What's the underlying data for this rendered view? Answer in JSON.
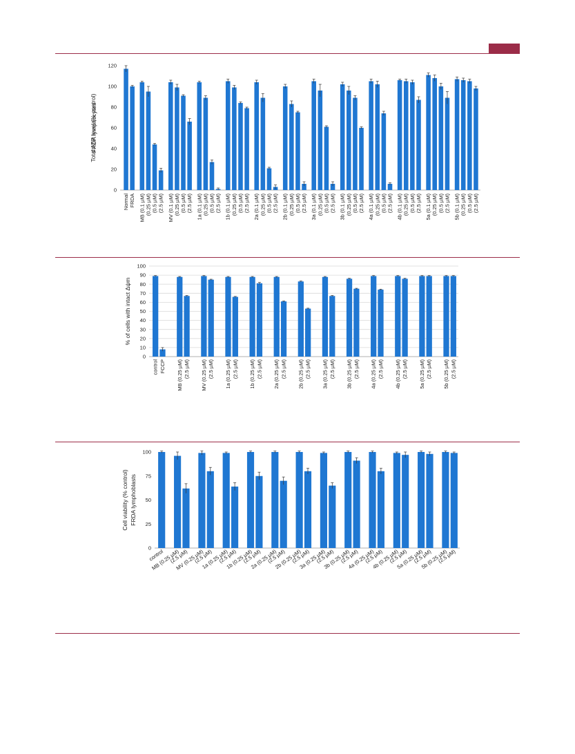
{
  "colors": {
    "accent": "#9b2c48",
    "bar": "#1f77d2",
    "axis": "#999999",
    "text": "#222222"
  },
  "chart_data": [
    {
      "type": "bar",
      "ylabel": "Total ATP level (% control)\nFRDA lymphocytes",
      "ylim": [
        0,
        120
      ],
      "yticks": [
        0,
        20,
        40,
        60,
        80,
        100,
        120
      ],
      "grid": false,
      "groups": [
        {
          "labels": [
            "Normal",
            "FRDA"
          ],
          "values": [
            117,
            100
          ],
          "errors": [
            3,
            1
          ]
        },
        {
          "labels": [
            "MB (0.1 µM)",
            "(0.25 µM)",
            "(0.5 µM)",
            "(2.5 µM)"
          ],
          "values": [
            104,
            95,
            44,
            19
          ],
          "errors": [
            1,
            5,
            1,
            2
          ]
        },
        {
          "labels": [
            "MV (0.1 µM)",
            "(0.25 µM)",
            "(0.5 µM)",
            "(2.5 µM)"
          ],
          "values": [
            104,
            99,
            91,
            66
          ],
          "errors": [
            2,
            3,
            1,
            3
          ]
        },
        {
          "labels": [
            "1a (0.1 µM)",
            "(0.25 µM)",
            "(0.5 µM)",
            "(2.5 µM)"
          ],
          "values": [
            104,
            89,
            27,
            1
          ],
          "errors": [
            1,
            2,
            2,
            1
          ]
        },
        {
          "labels": [
            "1b (0.1 µM)",
            "(0.25 µM)",
            "(0.5 µM)",
            "(2.5 µM)"
          ],
          "values": [
            105,
            99,
            84,
            79
          ],
          "errors": [
            2,
            2,
            1,
            1
          ]
        },
        {
          "labels": [
            "2a (0.1 µM)",
            "(0.25 µM)",
            "(0.5 µM)",
            "(2.5 µM)"
          ],
          "values": [
            104,
            89,
            21,
            3
          ],
          "errors": [
            2,
            4,
            1,
            2
          ]
        },
        {
          "labels": [
            "2b (0.1 µM)",
            "(0.25 µM)",
            "(0.5 µM)",
            "(2.5 µM)"
          ],
          "values": [
            100,
            83,
            75,
            6
          ],
          "errors": [
            2,
            3,
            1,
            2
          ]
        },
        {
          "labels": [
            "3a (0.1 µM)",
            "(0.25 µM)",
            "(0.5 µM)",
            "(2.5 µM)"
          ],
          "values": [
            105,
            96,
            61,
            6
          ],
          "errors": [
            2,
            6,
            1,
            2
          ]
        },
        {
          "labels": [
            "3b (0.1 µM)",
            "(0.25 µM)",
            "(0.5 µM)",
            "(2.5 µM)"
          ],
          "values": [
            102,
            96,
            89,
            60
          ],
          "errors": [
            2,
            4,
            2,
            1
          ]
        },
        {
          "labels": [
            "4a (0.1 µM)",
            "(0.25 µM)",
            "(0.5 µM)",
            "(2.5 µM)"
          ],
          "values": [
            105,
            102,
            74,
            6
          ],
          "errors": [
            2,
            3,
            2,
            1
          ]
        },
        {
          "labels": [
            "4b (0.1 µM)",
            "(0.25 µM)",
            "(0.5 µM)",
            "(2.5 µM)"
          ],
          "values": [
            106,
            105,
            104,
            87
          ],
          "errors": [
            1,
            2,
            2,
            3
          ]
        },
        {
          "labels": [
            "5a (0.1 µM)",
            "(0.25 µM)",
            "(0.5 µM)",
            "(2.5 µM)"
          ],
          "values": [
            111,
            108,
            100,
            89
          ],
          "errors": [
            2,
            3,
            3,
            6
          ]
        },
        {
          "labels": [
            "5b (0.1 µM)",
            "(0.25 µM)",
            "(0.5 µM)",
            "(2.5 µM)"
          ],
          "values": [
            107,
            106,
            105,
            98
          ],
          "errors": [
            2,
            2,
            2,
            2
          ]
        }
      ]
    },
    {
      "type": "bar",
      "ylabel": "% of cells with intact Δψm",
      "ylim": [
        0,
        100
      ],
      "yticks": [
        0,
        10,
        20,
        30,
        40,
        50,
        60,
        70,
        80,
        90,
        100
      ],
      "grid": true,
      "groups": [
        {
          "labels": [
            "control",
            "FCCP"
          ],
          "values": [
            89,
            8
          ],
          "errors": [
            0.5,
            2
          ]
        },
        {
          "labels": [
            "MB (0.25 µM)",
            "(2.5 µM)"
          ],
          "values": [
            88,
            67
          ],
          "errors": [
            0.5,
            0.5
          ]
        },
        {
          "labels": [
            "MV (0.25 µM)",
            "(2.5 µM)"
          ],
          "values": [
            89,
            85
          ],
          "errors": [
            0.5,
            0.5
          ]
        },
        {
          "labels": [
            "1a (0.25 µM)",
            "(2.5 µM)"
          ],
          "values": [
            88,
            66
          ],
          "errors": [
            0.5,
            0.5
          ]
        },
        {
          "labels": [
            "1b (0.25 µM)",
            "(2.5 µM)"
          ],
          "values": [
            88,
            81
          ],
          "errors": [
            0.5,
            1
          ]
        },
        {
          "labels": [
            "2a (0.25 µM)",
            "(2.5 µM)"
          ],
          "values": [
            88,
            61
          ],
          "errors": [
            0.5,
            0.5
          ]
        },
        {
          "labels": [
            "2b (0.25 µM)",
            "(2.5 µM)"
          ],
          "values": [
            83,
            53
          ],
          "errors": [
            0.5,
            0.5
          ]
        },
        {
          "labels": [
            "3a (0.25 µM)",
            "(2.5 µM)"
          ],
          "values": [
            88,
            67
          ],
          "errors": [
            0.5,
            0.5
          ]
        },
        {
          "labels": [
            "3b (0.25 µM)",
            "(2.5 µM)"
          ],
          "values": [
            86,
            75
          ],
          "errors": [
            0.5,
            0.5
          ]
        },
        {
          "labels": [
            "4a (0.25 µM)",
            "(2.5 µM)"
          ],
          "values": [
            89,
            74
          ],
          "errors": [
            0.5,
            0.5
          ]
        },
        {
          "labels": [
            "4b (0.25 µM)",
            "(2.5 µM)"
          ],
          "values": [
            89,
            86
          ],
          "errors": [
            0.5,
            0.5
          ]
        },
        {
          "labels": [
            "5a (0.25 µM)",
            "(2.5 µM)"
          ],
          "values": [
            89,
            89
          ],
          "errors": [
            0.5,
            0.5
          ]
        },
        {
          "labels": [
            "5b (0.25 µM)",
            "(2.5 µM)"
          ],
          "values": [
            89,
            89
          ],
          "errors": [
            0.5,
            0.5
          ]
        }
      ]
    },
    {
      "type": "bar",
      "ylabel": "Cell viability (% control)\nFRDA lymphoblasts",
      "ylim": [
        0,
        100
      ],
      "yticks": [
        0,
        25,
        50,
        75,
        100
      ],
      "grid": false,
      "groups": [
        {
          "labels": [
            "control"
          ],
          "values": [
            100
          ],
          "errors": [
            1
          ]
        },
        {
          "labels": [
            "MB (0.25 µM)",
            "(2.5 µM)"
          ],
          "values": [
            96,
            62
          ],
          "errors": [
            4,
            5
          ]
        },
        {
          "labels": [
            "MV (0.25 µM)",
            "(2.5 µM)"
          ],
          "values": [
            99,
            80
          ],
          "errors": [
            2,
            4
          ]
        },
        {
          "labels": [
            "1a (0.25 µM)",
            "(2.5 µM)"
          ],
          "values": [
            99,
            64
          ],
          "errors": [
            1,
            4
          ]
        },
        {
          "labels": [
            "1b (0.25 µM)",
            "(2.5 µM)"
          ],
          "values": [
            100,
            75
          ],
          "errors": [
            1,
            4
          ]
        },
        {
          "labels": [
            "2a (0.25 µM)",
            "(2.5 µM)"
          ],
          "values": [
            100,
            70
          ],
          "errors": [
            1,
            4
          ]
        },
        {
          "labels": [
            "2b (0.25 µM)",
            "(2.5 µM)"
          ],
          "values": [
            100,
            80
          ],
          "errors": [
            1,
            3
          ]
        },
        {
          "labels": [
            "3a (0.25 µM)",
            "(2.5 µM)"
          ],
          "values": [
            99,
            65
          ],
          "errors": [
            1,
            3
          ]
        },
        {
          "labels": [
            "3b (0.25 µM)",
            "(2.5 µM)"
          ],
          "values": [
            100,
            91
          ],
          "errors": [
            1,
            3
          ]
        },
        {
          "labels": [
            "4a (0.25 µM)",
            "(2.5 µM)"
          ],
          "values": [
            100,
            80
          ],
          "errors": [
            1,
            3
          ]
        },
        {
          "labels": [
            "4b (0.25 µM)",
            "(2.5 µM)"
          ],
          "values": [
            99,
            97
          ],
          "errors": [
            1,
            3
          ]
        },
        {
          "labels": [
            "5a (0.25 µM)",
            "(2.5 µM)"
          ],
          "values": [
            100,
            98
          ],
          "errors": [
            1,
            2
          ]
        },
        {
          "labels": [
            "5b (0.25 µM)",
            "(2.5 µM)"
          ],
          "values": [
            100,
            99
          ],
          "errors": [
            1,
            1
          ]
        }
      ]
    }
  ]
}
